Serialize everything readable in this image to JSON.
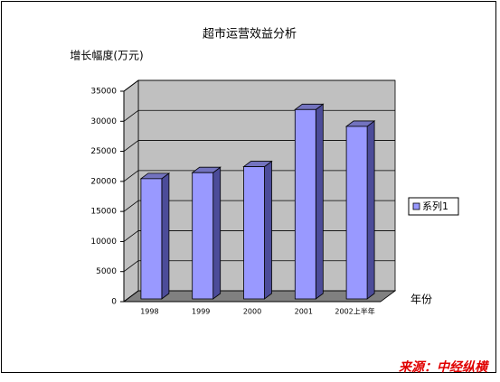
{
  "chart_data": {
    "type": "bar3d",
    "title": "超市运营效益分析",
    "y_label": "增长幅度(万元)",
    "x_label": "年份",
    "categories": [
      "1998",
      "1999",
      "2000",
      "2001",
      "2002上半年"
    ],
    "series": [
      {
        "name": "系列1",
        "color": "#9999ff",
        "values": [
          20000,
          21000,
          22000,
          31500,
          28700
        ]
      }
    ],
    "ylim": [
      0,
      35000
    ],
    "yticks": [
      0,
      5000,
      10000,
      15000,
      20000,
      25000,
      30000,
      35000
    ],
    "grid": true,
    "legend": "right",
    "source": "来源：中经纵横"
  }
}
